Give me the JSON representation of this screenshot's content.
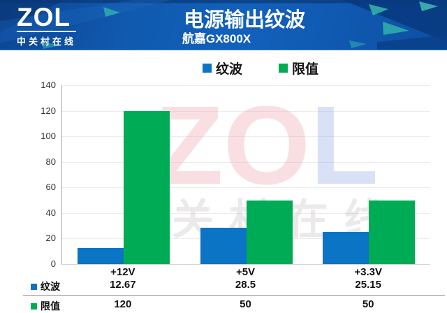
{
  "header": {
    "logo_text": "ZOL",
    "logo_subtext": "中关村在线",
    "title": "电源输出纹波",
    "subtitle": "航嘉GX800X"
  },
  "legend": {
    "items": [
      {
        "label": "纹波",
        "color": "#0b74c4"
      },
      {
        "label": "限值",
        "color": "#00ab56"
      }
    ]
  },
  "chart_data": {
    "type": "bar",
    "title": "电源输出纹波",
    "subtitle": "航嘉GX800X",
    "categories": [
      "+12V",
      "+5V",
      "+3.3V"
    ],
    "series": [
      {
        "name": "纹波",
        "color": "#0b74c4",
        "values": [
          12.67,
          28.5,
          25.15
        ]
      },
      {
        "name": "限值",
        "color": "#00ab56",
        "values": [
          120,
          50,
          50
        ]
      }
    ],
    "xlabel": "",
    "ylabel": "",
    "ylim": [
      0,
      140
    ],
    "yticks": [
      0,
      20,
      40,
      60,
      80,
      100,
      120,
      140
    ],
    "grid": true,
    "legend_position": "top"
  },
  "table": {
    "rows": [
      {
        "label": "纹波",
        "color": "#0b74c4",
        "values": [
          "12.67",
          "28.5",
          "25.15"
        ]
      },
      {
        "label": "限值",
        "color": "#00ab56",
        "values": [
          "120",
          "50",
          "50"
        ]
      }
    ]
  },
  "watermark": {
    "z": "Z",
    "o": "O",
    "l": "L",
    "subtext": "关村在线"
  },
  "colors": {
    "bar_blue": "#0b74c4",
    "bar_green": "#00ab56",
    "header_blue": "#1059ae",
    "header_dark_navy": "#083a80",
    "header_teal": "#2fb3ab"
  }
}
